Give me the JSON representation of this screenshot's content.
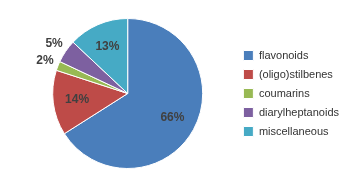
{
  "chart_data": {
    "type": "pie",
    "categories": [
      "flavonoids",
      "(oligo)stilbenes",
      "coumarins",
      "diarylheptanoids",
      "miscellaneous"
    ],
    "values": [
      66,
      14,
      2,
      5,
      13
    ],
    "value_labels": [
      "66%",
      "14%",
      "2%",
      "5%",
      "13%"
    ],
    "colors": [
      "#4a7ebb",
      "#be4b48",
      "#98b954",
      "#7d60a0",
      "#46aac5"
    ],
    "legend": "right",
    "data_labels": true
  }
}
